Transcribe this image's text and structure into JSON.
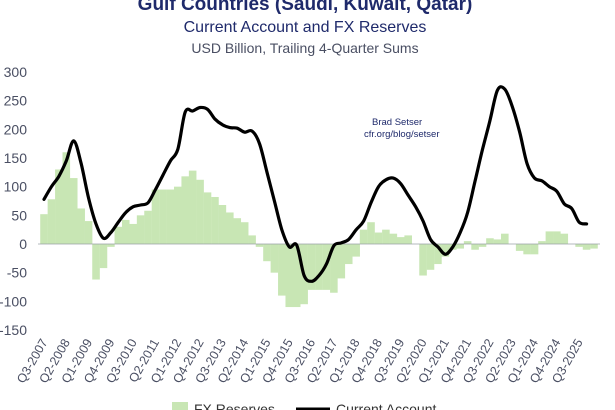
{
  "chart_data": {
    "type": "bar+line",
    "title": "Gulf Countries (Saudi, Kuwait, Qatar)",
    "subtitle": "Current Account and FX Reserves",
    "subtitle2": "USD Billion, Trailing 4-Quarter Sums",
    "annotation": [
      "Brad Setser",
      "cfr.org/blog/setser"
    ],
    "ylim": [
      -150,
      300
    ],
    "yticks": [
      300,
      250,
      200,
      150,
      100,
      50,
      0,
      -50,
      -100,
      -150
    ],
    "ytick_labels": [
      "300",
      "250",
      "200",
      "150",
      "100",
      "50",
      "0",
      "-50",
      "-100",
      "-150"
    ],
    "x_start": "Q3-2007",
    "x_tick_labels": [
      "Q3-2007",
      "Q2-2008",
      "Q1-2009",
      "Q4-2009",
      "Q3-2010",
      "Q2-2011",
      "Q1-2012",
      "Q4-2012",
      "Q3-2013",
      "Q2-2014",
      "Q1-2015",
      "Q4-2015",
      "Q3-2016",
      "Q2-2017",
      "Q1-2018",
      "Q4-2018",
      "Q3-2019",
      "Q2-2020",
      "Q1-2021",
      "Q4-2021",
      "Q3-2022",
      "Q2-2023",
      "Q1-2024",
      "Q4-2024",
      "Q3-2025"
    ],
    "legend": [
      "FX Reserves",
      "Current Account"
    ],
    "colors": {
      "fx_reserves": "#c8e6b4",
      "current_account": "#000000",
      "axis_text": "#4a4f63",
      "title": "#1f2a6b"
    },
    "series": [
      {
        "name": "FX Reserves",
        "kind": "bar",
        "values": [
          52,
          78,
          130,
          160,
          115,
          62,
          40,
          -62,
          -42,
          -5,
          30,
          42,
          35,
          50,
          58,
          95,
          95,
          95,
          100,
          118,
          128,
          112,
          90,
          82,
          68,
          55,
          45,
          38,
          15,
          -5,
          -30,
          -50,
          -90,
          -110,
          -110,
          -105,
          -80,
          -80,
          -80,
          -85,
          -60,
          -35,
          -22,
          25,
          38,
          20,
          25,
          18,
          12,
          15,
          0,
          -55,
          -45,
          -35,
          -22,
          -10,
          -8,
          5,
          -10,
          -5,
          10,
          8,
          18,
          0,
          -12,
          -18,
          -18,
          5,
          22,
          22,
          18,
          0,
          -5,
          -10,
          -8
        ]
      },
      {
        "name": "Current Account",
        "kind": "line",
        "values": [
          78,
          100,
          118,
          145,
          180,
          140,
          80,
          35,
          10,
          20,
          38,
          55,
          65,
          68,
          72,
          95,
          120,
          145,
          165,
          230,
          232,
          238,
          235,
          218,
          208,
          203,
          202,
          195,
          197,
          175,
          125,
          75,
          25,
          -5,
          -2,
          -55,
          -65,
          -55,
          -35,
          -3,
          2,
          8,
          25,
          40,
          72,
          100,
          112,
          115,
          105,
          85,
          65,
          40,
          8,
          -5,
          -18,
          -5,
          20,
          55,
          110,
          165,
          215,
          268,
          270,
          240,
          195,
          140,
          115,
          110,
          100,
          92,
          70,
          62,
          38,
          35
        ]
      }
    ]
  }
}
